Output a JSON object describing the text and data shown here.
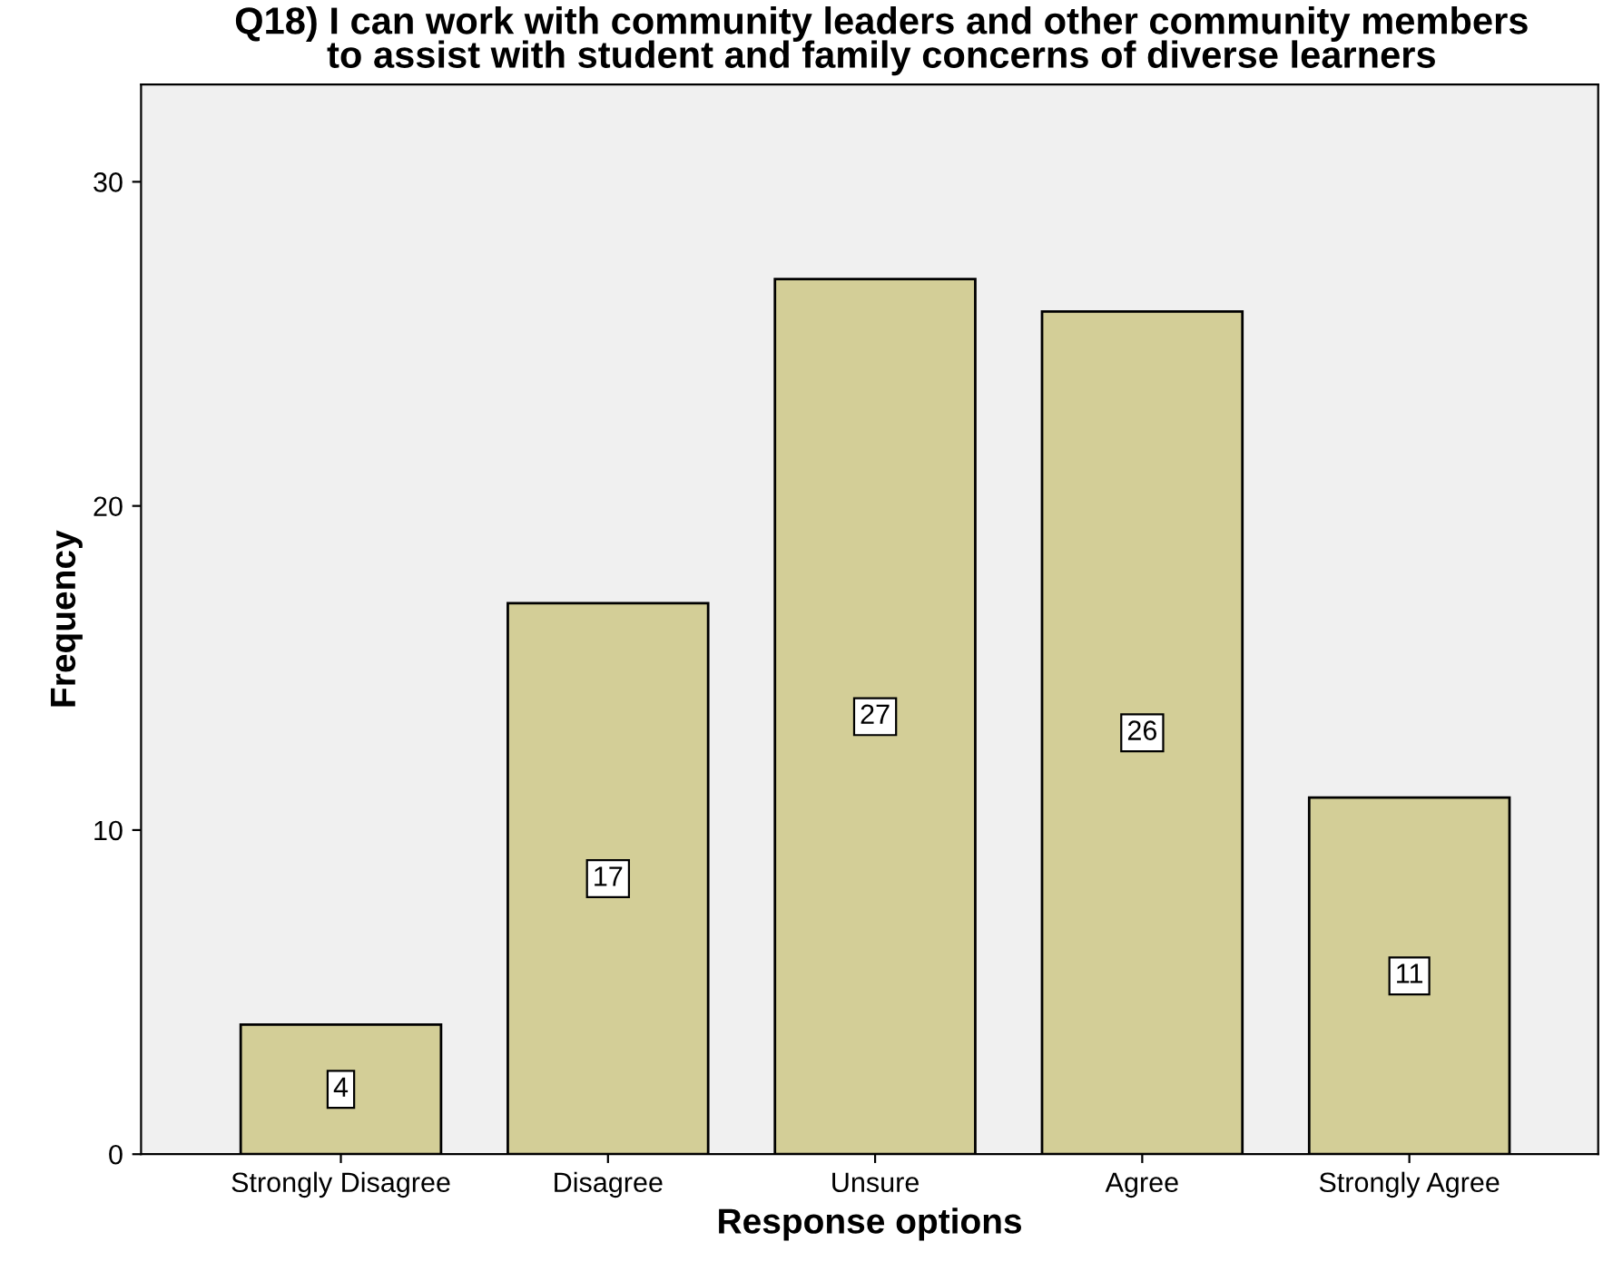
{
  "chart_data": {
    "type": "bar",
    "title": "Q18) I can work with community leaders and other community members\nto assist with student and family concerns of diverse learners",
    "xlabel": "Response options",
    "ylabel": "Frequency",
    "categories": [
      "Strongly Disagree",
      "Disagree",
      "Unsure",
      "Agree",
      "Strongly Agree"
    ],
    "values": [
      4,
      17,
      27,
      26,
      11
    ],
    "color": "#d3ce97",
    "ylim": [
      0,
      33
    ],
    "yticks": [
      0,
      10,
      20,
      30
    ],
    "grid": false,
    "legend": false,
    "data_labels": true
  }
}
